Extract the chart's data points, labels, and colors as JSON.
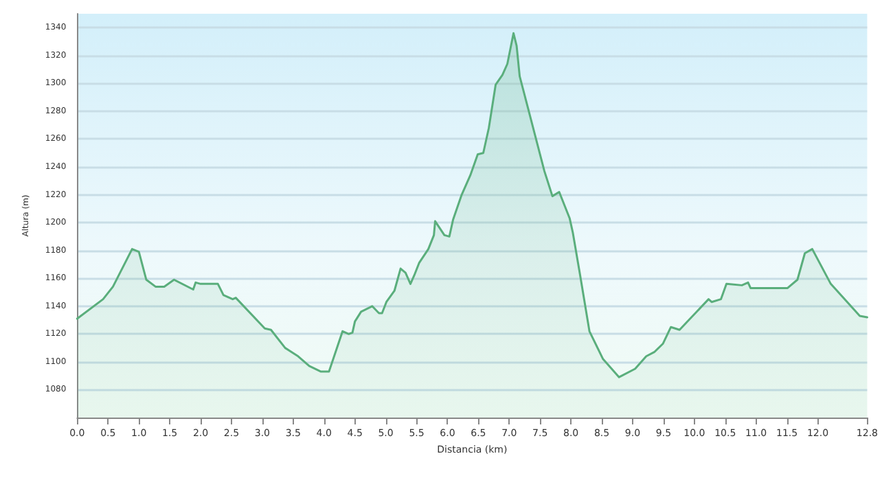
{
  "chart_data": {
    "type": "area",
    "xlabel": "Distancia (km)",
    "ylabel": "Altura (m)",
    "x": [
      0,
      0.42,
      0.58,
      0.89,
      1.0,
      1.12,
      1.27,
      1.41,
      1.57,
      1.88,
      1.92,
      2.0,
      2.28,
      2.37,
      2.52,
      2.57,
      3.04,
      3.14,
      3.37,
      3.58,
      3.76,
      3.95,
      4.08,
      4.3,
      4.4,
      4.46,
      4.5,
      4.6,
      4.78,
      4.89,
      4.94,
      5.01,
      5.14,
      5.24,
      5.32,
      5.4,
      5.46,
      5.54,
      5.69,
      5.78,
      5.8,
      5.95,
      6.03,
      6.09,
      6.23,
      6.37,
      6.49,
      6.58,
      6.67,
      6.78,
      6.89,
      6.97,
      7.07,
      7.12,
      7.17,
      7.3,
      7.57,
      7.7,
      7.81,
      7.98,
      8.03,
      8.15,
      8.3,
      8.52,
      8.78,
      9.04,
      9.22,
      9.35,
      9.49,
      9.62,
      9.76,
      10.23,
      10.28,
      10.43,
      10.52,
      10.77,
      10.87,
      10.91,
      11.51,
      11.67,
      11.79,
      11.91,
      12.21,
      12.68,
      12.8
    ],
    "series": [
      {
        "color": "#5aae7c",
        "values": [
          1131,
          1145,
          1154,
          1181,
          1179,
          1159,
          1154,
          1154,
          1159,
          1152,
          1157,
          1156,
          1156,
          1148,
          1145,
          1146,
          1124,
          1123,
          1110,
          1104,
          1097,
          1093,
          1093,
          1122,
          1120,
          1121,
          1129,
          1136,
          1140,
          1135,
          1135,
          1143,
          1151,
          1167,
          1164,
          1156,
          1162,
          1171,
          1181,
          1191,
          1201,
          1191,
          1190,
          1202,
          1220,
          1234,
          1249,
          1250,
          1268,
          1299,
          1306,
          1314,
          1336,
          1327,
          1305,
          1283,
          1237,
          1219,
          1222,
          1203,
          1193,
          1162,
          1122,
          1102,
          1089,
          1095,
          1104,
          1107,
          1113,
          1125,
          1123,
          1145,
          1143,
          1145,
          1156,
          1155,
          1157,
          1153,
          1153,
          1159,
          1178,
          1181,
          1156,
          1133,
          1132
        ]
      }
    ],
    "xlim": [
      0,
      12.8
    ],
    "ylim": [
      1060,
      1350
    ],
    "xticks": [
      {
        "value": 0,
        "label": "0.0"
      },
      0.5,
      {
        "value": 1,
        "label": "1.0"
      },
      1.5,
      {
        "value": 2,
        "label": "2.0"
      },
      2.5,
      {
        "value": 3,
        "label": "3.0"
      },
      3.5,
      {
        "value": 4,
        "label": "4.0"
      },
      4.5,
      {
        "value": 5,
        "label": "5.0"
      },
      5.5,
      {
        "value": 6,
        "label": "6.0"
      },
      6.5,
      {
        "value": 7,
        "label": "7.0"
      },
      7.5,
      {
        "value": 8,
        "label": "8.0"
      },
      8.5,
      {
        "value": 9,
        "label": "9.0"
      },
      9.5,
      {
        "value": 10,
        "label": "10.0"
      },
      10.5,
      {
        "value": 11,
        "label": "11.0"
      },
      11.5,
      {
        "value": 12,
        "label": "12.0"
      },
      12.8
    ],
    "yticks": [
      1080,
      1100,
      1120,
      1140,
      1160,
      1180,
      1200,
      1220,
      1240,
      1260,
      1280,
      1300,
      1320,
      1340
    ],
    "grid": "y",
    "marker": "none",
    "line_style": "solid"
  }
}
